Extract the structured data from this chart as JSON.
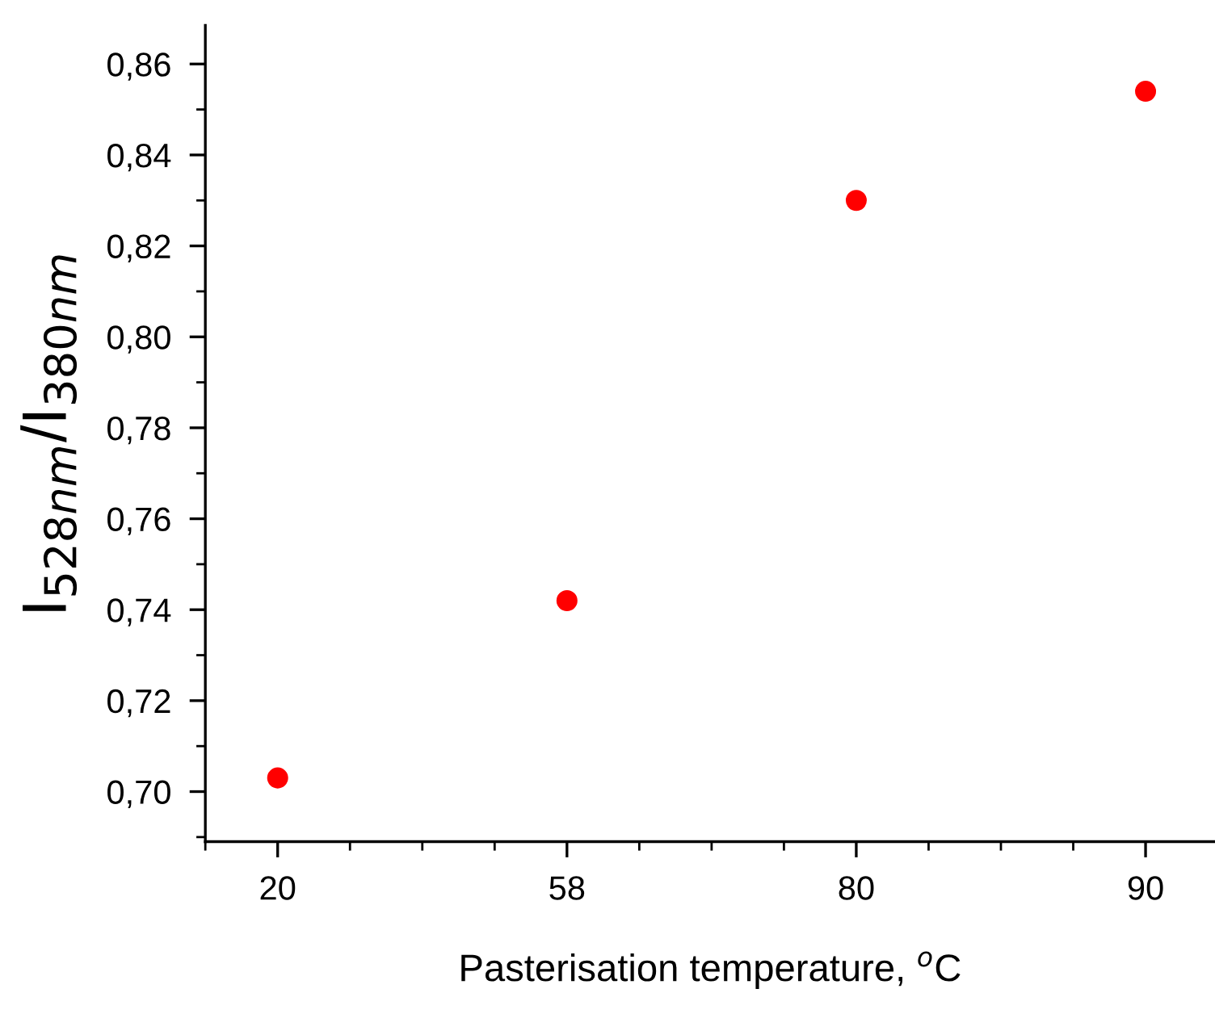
{
  "chart_data": {
    "type": "scatter",
    "xlabel": "Pasterisation temperature, $^{o}$C",
    "ylabel": "I$_{528nm}$/I$_{380nm}$",
    "categories": [
      "20",
      "58",
      "80",
      "90"
    ],
    "series": [
      {
        "color": "#ff0000",
        "values": [
          0.703,
          0.742,
          0.83,
          0.854
        ]
      }
    ],
    "ylim": [
      0.689,
      0.8685
    ],
    "yticks": [
      {
        "value": 0.7,
        "label": "0,70"
      },
      {
        "value": 0.72,
        "label": "0,72"
      },
      {
        "value": 0.74,
        "label": "0,74"
      },
      {
        "value": 0.76,
        "label": "0,76"
      },
      {
        "value": 0.78,
        "label": "0,78"
      },
      {
        "value": 0.8,
        "label": "0,80"
      },
      {
        "value": 0.82,
        "label": "0,82"
      },
      {
        "value": 0.84,
        "label": "0,84"
      },
      {
        "value": 0.86,
        "label": "0,86"
      }
    ],
    "marker": "circle",
    "grid": false,
    "legend": false
  }
}
